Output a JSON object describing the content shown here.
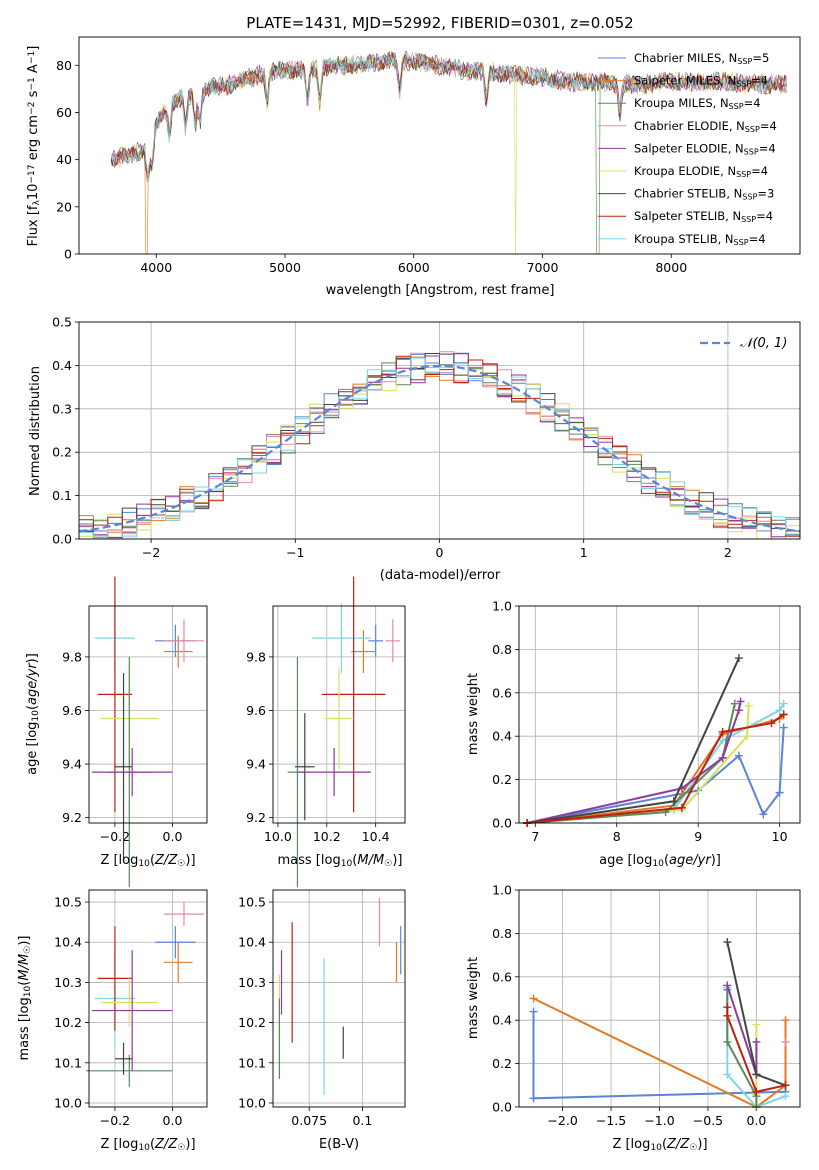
{
  "colors": {
    "blue": "#5b84d6",
    "orange": "#e07b25",
    "green": "#5a8a5a",
    "pink": "#e88aa8",
    "purple": "#8e3a9e",
    "yellow": "#d8e060",
    "dark": "#444444",
    "red": "#c02010",
    "cyan": "#7fd6e6",
    "grid": "#b0b0b0"
  },
  "chart_data": [
    {
      "type": "line",
      "title": "PLATE=1431, MJD=52992, FIBERID=0301, z=0.052",
      "xlabel": "wavelength [Angstrom, rest frame]",
      "ylabel": "Flux [fλ10⁻¹⁷ erg cm⁻² s⁻¹ A⁻¹]",
      "xlim": [
        3400,
        9000
      ],
      "ylim": [
        0,
        92
      ],
      "xticks": [
        4000,
        5000,
        6000,
        7000,
        8000
      ],
      "yticks": [
        0,
        20,
        40,
        60,
        80
      ],
      "grid": false,
      "legend_position": "upper right",
      "series_names": [
        "Chabrier MILES, N_SSP=5",
        "Salpeter MILES, N_SSP=4",
        "Kroupa MILES, N_SSP=4",
        "Chabrier ELODIE, N_SSP=4",
        "Salpeter ELODIE, N_SSP=4",
        "Kroupa ELODIE, N_SSP=4",
        "Chabrier STELIB, N_SSP=3",
        "Salpeter STELIB, N_SSP=4",
        "Kroupa STELIB, N_SSP=4"
      ],
      "continuum": {
        "x": [
          3650,
          3800,
          3950,
          4000,
          4100,
          4200,
          4400,
          4600,
          4800,
          5000,
          5200,
          5400,
          5600,
          5800,
          6000,
          6200,
          6400,
          6600,
          6800,
          7000,
          7200,
          7400,
          7600,
          7800,
          8000,
          8200,
          8400,
          8600,
          8900
        ],
        "y": [
          40,
          42,
          45,
          55,
          63,
          66,
          70,
          72,
          76,
          78,
          78,
          80,
          80,
          82,
          82,
          80,
          78,
          77,
          76,
          75,
          73,
          73,
          72,
          72,
          73,
          73,
          73,
          72,
          72
        ]
      },
      "dropouts": [
        {
          "series": "Salpeter MILES, N_SSP=4",
          "from": 3920,
          "to": 3935
        },
        {
          "series": "Kroupa ELODIE, N_SSP=4",
          "from": 6790,
          "to": 6795
        },
        {
          "series": "Kroupa MILES, N_SSP=4",
          "from": 7420,
          "to": 7440
        }
      ]
    },
    {
      "type": "bar",
      "subtype": "step-histogram",
      "xlabel": "(data-model)/error",
      "ylabel": "Normed distribution",
      "xlim": [
        -2.5,
        2.5
      ],
      "ylim": [
        0,
        0.5
      ],
      "xticks": [
        -2,
        -1,
        0,
        1,
        2
      ],
      "yticks": [
        0.0,
        0.1,
        0.2,
        0.3,
        0.4,
        0.5
      ],
      "grid": true,
      "bin_width": 0.1,
      "reference_curve": {
        "name": "𝒩(0, 1)",
        "mean": 0,
        "sigma": 1
      },
      "legend_position": "upper right"
    },
    {
      "type": "scatter",
      "xlabel": "Z [log10(Z/Z☉)]",
      "ylabel": "age  [log10(age/yr)]",
      "xlim": [
        -0.29,
        0.12
      ],
      "ylim": [
        9.18,
        9.99
      ],
      "xticks": [
        -0.2,
        0.0
      ],
      "yticks": [
        9.2,
        9.4,
        9.6,
        9.8
      ],
      "grid": true,
      "points": [
        {
          "c": "blue",
          "x": 0.01,
          "y": 9.86,
          "xerr": 0.07,
          "yerr": 0.06
        },
        {
          "c": "orange",
          "x": 0.02,
          "y": 9.82,
          "xerr": 0.05,
          "yerr": 0.06
        },
        {
          "c": "pink",
          "x": 0.04,
          "y": 9.86,
          "xerr": 0.07,
          "yerr": 0.08
        },
        {
          "c": "cyan",
          "x": -0.2,
          "y": 9.87,
          "xerr": 0.07,
          "yerr": 0.13
        },
        {
          "c": "red",
          "x": -0.2,
          "y": 9.66,
          "xerr": 0.06,
          "yerr": 0.44
        },
        {
          "c": "yellow",
          "x": -0.15,
          "y": 9.57,
          "xerr": 0.1,
          "yerr": 0.19
        },
        {
          "c": "green",
          "x": -0.15,
          "y": 9.37,
          "xerr": 0.08,
          "yerr": 0.43
        },
        {
          "c": "dark",
          "x": -0.17,
          "y": 9.39,
          "xerr": 0.03,
          "yerr": 0.35
        },
        {
          "c": "purple",
          "x": -0.14,
          "y": 9.37,
          "xerr": 0.14,
          "yerr": 0.09
        }
      ]
    },
    {
      "type": "scatter",
      "xlabel": "mass [log10(M/M☉)]",
      "ylabel": "",
      "xlim": [
        9.98,
        10.52
      ],
      "ylim": [
        9.18,
        9.99
      ],
      "xticks": [
        10.0,
        10.2,
        10.4
      ],
      "yticks": [
        9.2,
        9.4,
        9.6,
        9.8
      ],
      "grid": true,
      "points": [
        {
          "c": "blue",
          "x": 10.4,
          "y": 9.86,
          "xerr": 0.03,
          "yerr": 0.06
        },
        {
          "c": "orange",
          "x": 10.35,
          "y": 9.82,
          "xerr": 0.05,
          "yerr": 0.08
        },
        {
          "c": "pink",
          "x": 10.47,
          "y": 9.86,
          "xerr": 0.03,
          "yerr": 0.08
        },
        {
          "c": "cyan",
          "x": 10.26,
          "y": 9.87,
          "xerr": 0.12,
          "yerr": 0.13
        },
        {
          "c": "red",
          "x": 10.31,
          "y": 9.66,
          "xerr": 0.13,
          "yerr": 0.44
        },
        {
          "c": "yellow",
          "x": 10.25,
          "y": 9.57,
          "xerr": 0.06,
          "yerr": 0.19
        },
        {
          "c": "green",
          "x": 10.08,
          "y": 9.37,
          "xerr": 0.04,
          "yerr": 0.43
        },
        {
          "c": "dark",
          "x": 10.11,
          "y": 9.39,
          "xerr": 0.04,
          "yerr": 0.2
        },
        {
          "c": "purple",
          "x": 10.23,
          "y": 9.37,
          "xerr": 0.15,
          "yerr": 0.09
        }
      ]
    },
    {
      "type": "line",
      "xlabel": "age  [log10(age/yr)]",
      "ylabel": "mass weight",
      "xlim": [
        6.8,
        10.25
      ],
      "ylim": [
        0,
        1.0
      ],
      "xticks": [
        7,
        8,
        9,
        10
      ],
      "yticks": [
        0.0,
        0.2,
        0.4,
        0.6,
        0.8,
        1.0
      ],
      "grid": true,
      "series": [
        {
          "c": "blue",
          "x": [
            6.9,
            9.0,
            9.5,
            9.8,
            10.0,
            10.05
          ],
          "y": [
            0.0,
            0.15,
            0.31,
            0.04,
            0.14,
            0.44
          ]
        },
        {
          "c": "orange",
          "x": [
            6.9,
            8.7,
            9.3,
            10.0,
            10.05
          ],
          "y": [
            0.0,
            0.08,
            0.41,
            0.48,
            0.5
          ]
        },
        {
          "c": "cyan",
          "x": [
            6.9,
            8.7,
            9.3,
            10.0,
            10.05
          ],
          "y": [
            0.0,
            0.06,
            0.38,
            0.52,
            0.55
          ]
        },
        {
          "c": "yellow",
          "x": [
            6.9,
            8.8,
            9.6,
            9.62
          ],
          "y": [
            0.0,
            0.06,
            0.4,
            0.54
          ]
        },
        {
          "c": "green",
          "x": [
            6.9,
            8.6,
            9.3,
            9.45
          ],
          "y": [
            0.0,
            0.05,
            0.3,
            0.55
          ]
        },
        {
          "c": "purple",
          "x": [
            6.9,
            8.8,
            9.3,
            9.5,
            9.52
          ],
          "y": [
            0.0,
            0.16,
            0.3,
            0.52,
            0.56
          ]
        },
        {
          "c": "dark",
          "x": [
            6.9,
            8.7,
            9.5
          ],
          "y": [
            0.0,
            0.1,
            0.76
          ]
        },
        {
          "c": "red",
          "x": [
            6.9,
            8.8,
            9.3,
            9.9,
            10.05
          ],
          "y": [
            0.0,
            0.07,
            0.42,
            0.46,
            0.5
          ]
        }
      ]
    },
    {
      "type": "scatter",
      "xlabel": "Z [log10(Z/Z☉)]",
      "ylabel": "mass [log10(M/M☉)]",
      "xlim": [
        -0.29,
        0.12
      ],
      "ylim": [
        9.99,
        10.53
      ],
      "xticks": [
        -0.2,
        0.0
      ],
      "yticks": [
        10.0,
        10.1,
        10.2,
        10.3,
        10.4,
        10.5
      ],
      "grid": true,
      "points": [
        {
          "c": "blue",
          "x": 0.01,
          "y": 10.4,
          "xerr": 0.07,
          "yerr": 0.04
        },
        {
          "c": "orange",
          "x": 0.02,
          "y": 10.35,
          "xerr": 0.05,
          "yerr": 0.05
        },
        {
          "c": "pink",
          "x": 0.04,
          "y": 10.47,
          "xerr": 0.07,
          "yerr": 0.03
        },
        {
          "c": "cyan",
          "x": -0.2,
          "y": 10.26,
          "xerr": 0.07,
          "yerr": 0.12
        },
        {
          "c": "red",
          "x": -0.2,
          "y": 10.31,
          "xerr": 0.06,
          "yerr": 0.13
        },
        {
          "c": "yellow",
          "x": -0.15,
          "y": 10.25,
          "xerr": 0.1,
          "yerr": 0.06
        },
        {
          "c": "green",
          "x": -0.15,
          "y": 10.08,
          "xerr": 0.15,
          "yerr": 0.04
        },
        {
          "c": "dark",
          "x": -0.17,
          "y": 10.11,
          "xerr": 0.03,
          "yerr": 0.04
        },
        {
          "c": "purple",
          "x": -0.14,
          "y": 10.23,
          "xerr": 0.14,
          "yerr": 0.15
        }
      ]
    },
    {
      "type": "scatter",
      "xlabel": "E(B-V)",
      "ylabel": "",
      "xlim": [
        0.058,
        0.12
      ],
      "ylim": [
        9.99,
        10.53
      ],
      "xticks": [
        0.075,
        0.1
      ],
      "yticks": [
        10.0,
        10.1,
        10.2,
        10.3,
        10.4,
        10.5
      ],
      "grid": true,
      "points": [
        {
          "c": "blue",
          "x": 0.118,
          "y": 10.38,
          "yerr": 0.06
        },
        {
          "c": "orange",
          "x": 0.116,
          "y": 10.35,
          "yerr": 0.05
        },
        {
          "c": "pink",
          "x": 0.108,
          "y": 10.45,
          "yerr": 0.06
        },
        {
          "c": "cyan",
          "x": 0.082,
          "y": 10.19,
          "yerr": 0.17
        },
        {
          "c": "red",
          "x": 0.067,
          "y": 10.3,
          "yerr": 0.15
        },
        {
          "c": "yellow",
          "x": 0.061,
          "y": 10.24,
          "yerr": 0.08
        },
        {
          "c": "green",
          "x": 0.061,
          "y": 10.16,
          "yerr": 0.1
        },
        {
          "c": "dark",
          "x": 0.091,
          "y": 10.15,
          "yerr": 0.04
        },
        {
          "c": "purple",
          "x": 0.062,
          "y": 10.3,
          "yerr": 0.08
        }
      ]
    },
    {
      "type": "line",
      "xlabel": "Z [log10(Z/Z☉)]",
      "ylabel": "mass weight",
      "xlim": [
        -2.45,
        0.45
      ],
      "ylim": [
        0,
        1.0
      ],
      "xticks": [
        -2.0,
        -1.5,
        -1.0,
        -0.5,
        0.0
      ],
      "yticks": [
        0.0,
        0.2,
        0.4,
        0.6,
        0.8,
        1.0
      ],
      "grid": true,
      "series": [
        {
          "c": "blue",
          "x": [
            -2.3,
            -2.3,
            0.3,
            0.3
          ],
          "y": [
            0.44,
            0.04,
            0.07,
            0.1
          ]
        },
        {
          "c": "orange",
          "x": [
            -2.3,
            0.0,
            0.3,
            0.3
          ],
          "y": [
            0.5,
            0.0,
            0.1,
            0.4
          ]
        },
        {
          "c": "cyan",
          "x": [
            -0.3,
            -0.3,
            0.0,
            0.3
          ],
          "y": [
            0.55,
            0.15,
            0.0,
            0.05
          ]
        },
        {
          "c": "yellow",
          "x": [
            0.0,
            0.0,
            0.0
          ],
          "y": [
            0.38,
            0.06,
            0.0
          ]
        },
        {
          "c": "green",
          "x": [
            -0.3,
            -0.3,
            0.0,
            0.0
          ],
          "y": [
            0.54,
            0.3,
            0.05,
            0.0
          ]
        },
        {
          "c": "purple",
          "x": [
            -0.3,
            0.0,
            0.0
          ],
          "y": [
            0.56,
            0.15,
            0.3
          ]
        },
        {
          "c": "dark",
          "x": [
            -0.3,
            0.0,
            0.3
          ],
          "y": [
            0.76,
            0.15,
            0.1
          ]
        },
        {
          "c": "red",
          "x": [
            -0.3,
            -0.3,
            0.0,
            0.3
          ],
          "y": [
            0.46,
            0.42,
            0.07,
            0.1
          ]
        },
        {
          "c": "pink",
          "x": [
            0.3
          ],
          "y": [
            0.3
          ]
        }
      ]
    }
  ]
}
